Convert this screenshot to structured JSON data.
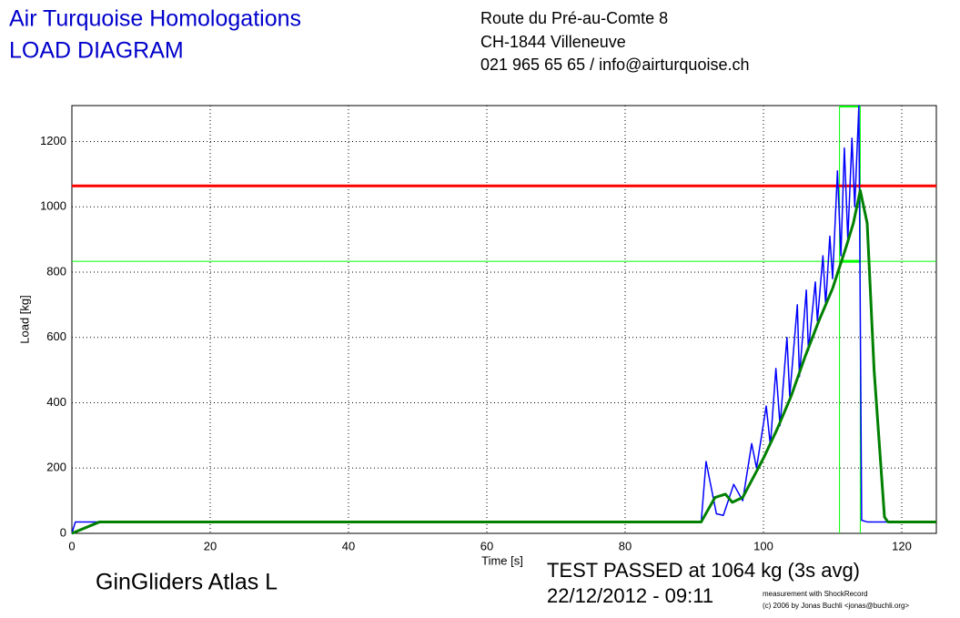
{
  "header": {
    "title": "Air Turquoise Homologations",
    "subtitle": "LOAD DIAGRAM",
    "address": [
      "Route du Pré-au-Comte 8",
      "CH-1844 Villeneuve",
      "021 965 65 65 / info@airturquoise.ch"
    ]
  },
  "footer": {
    "glider": "GinGliders Atlas L",
    "result": "TEST PASSED at 1064 kg (3s avg)",
    "date": "22/12/2012 - 09:11",
    "credit": [
      "measurement with ShockRecord",
      "(c) 2006 by Jonas Buchli <jonas@buchli.org>"
    ]
  },
  "chart_data": {
    "type": "line",
    "xlabel": "Time [s]",
    "ylabel": "Load [kg]",
    "xlim": [
      0,
      125
    ],
    "ylim": [
      0,
      1310
    ],
    "xticks": [
      0,
      20,
      40,
      60,
      80,
      100,
      120
    ],
    "yticks": [
      0,
      200,
      400,
      600,
      800,
      1000,
      1200
    ],
    "grid": true,
    "series": [
      {
        "color": "#0000ff",
        "width": 1.5,
        "x": [
          0,
          0.5,
          91,
          91.7,
          93.2,
          94.2,
          95.7,
          97,
          98.3,
          99,
          100.4,
          101,
          101.8,
          102.4,
          103.4,
          103.8,
          104.9,
          105.2,
          106.2,
          106.5,
          107.5,
          107.8,
          108.6,
          109,
          109.6,
          110,
          110.7,
          111.2,
          111.7,
          112.2,
          112.8,
          113.2,
          113.8,
          114.2,
          115,
          125
        ],
        "values": [
          0,
          35,
          35,
          220,
          60,
          55,
          150,
          100,
          275,
          200,
          390,
          270,
          505,
          330,
          600,
          420,
          700,
          480,
          745,
          560,
          770,
          650,
          850,
          700,
          910,
          780,
          1110,
          850,
          1180,
          900,
          1210,
          1000,
          1310,
          40,
          35,
          35
        ]
      },
      {
        "color": "#008000",
        "width": 3,
        "x": [
          0,
          4,
          91,
          93,
          94.5,
          95.5,
          97,
          98,
          100,
          102,
          104,
          106,
          108,
          110,
          112,
          113,
          114,
          115,
          116,
          117.5,
          118,
          125
        ],
        "values": [
          0,
          35,
          35,
          110,
          120,
          95,
          110,
          150,
          230,
          320,
          420,
          540,
          650,
          750,
          880,
          950,
          1050,
          950,
          500,
          50,
          35,
          35
        ]
      }
    ],
    "hlines": [
      {
        "value": 1064,
        "color": "#ff0000",
        "width": 3
      },
      {
        "value": 833,
        "color": "#00ff00",
        "width": 1
      }
    ],
    "vlines": [
      {
        "value": 111,
        "color": "#00ff00"
      },
      {
        "value": 114,
        "color": "#00ff00"
      }
    ]
  }
}
